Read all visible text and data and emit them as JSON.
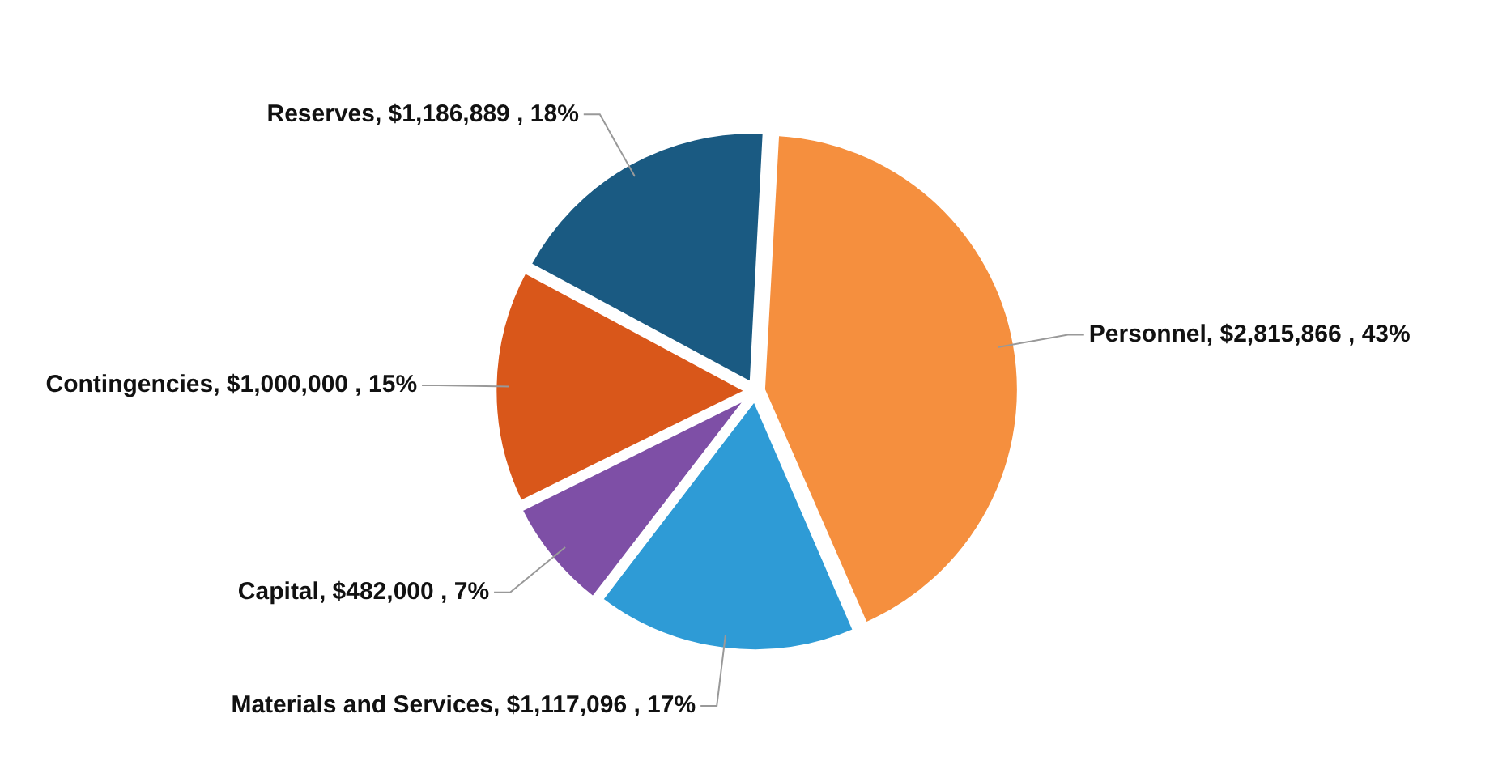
{
  "chart_data": {
    "type": "pie",
    "categories": [
      "Personnel",
      "Materials and Services",
      "Capital",
      "Contingencies",
      "Reserves"
    ],
    "values": [
      2815866,
      1117096,
      482000,
      1000000,
      1186889
    ],
    "value_labels": [
      "$2,815,866 , 43%",
      "$1,117,096 , 17%",
      "$482,000 , 7%",
      "$1,000,000 , 15%",
      "$1,186,889 , 18%"
    ],
    "colors": [
      "#f58f3e",
      "#2e9bd6",
      "#7e4fa6",
      "#d9571a",
      "#1a5a82"
    ]
  }
}
